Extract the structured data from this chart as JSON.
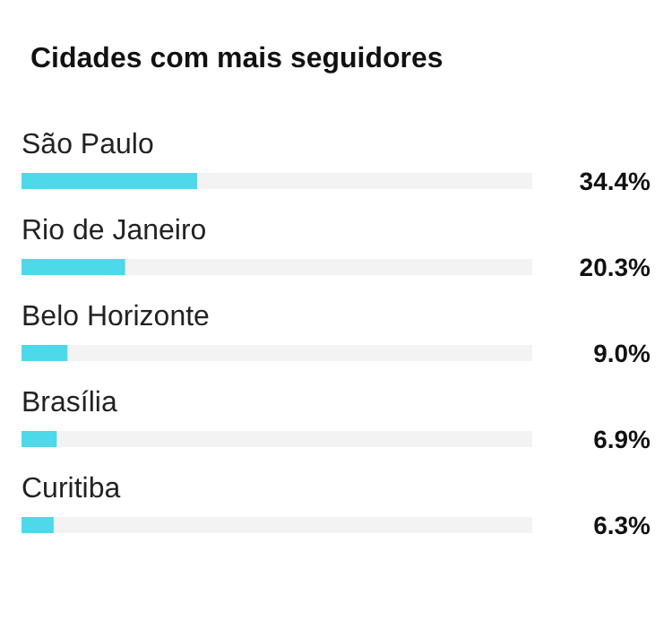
{
  "chart_data": {
    "type": "bar",
    "orientation": "horizontal",
    "title": "Cidades com mais seguidores",
    "categories": [
      "São Paulo",
      "Rio de Janeiro",
      "Belo Horizonte",
      "Brasília",
      "Curitiba"
    ],
    "values": [
      34.4,
      20.3,
      9.0,
      6.9,
      6.3
    ],
    "value_labels": [
      "34.4%",
      "20.3%",
      "9.0%",
      "6.9%",
      "6.3%"
    ],
    "color": "#4dd9ea",
    "xlim": [
      0,
      100
    ],
    "tick_labels": false,
    "grid": false
  }
}
